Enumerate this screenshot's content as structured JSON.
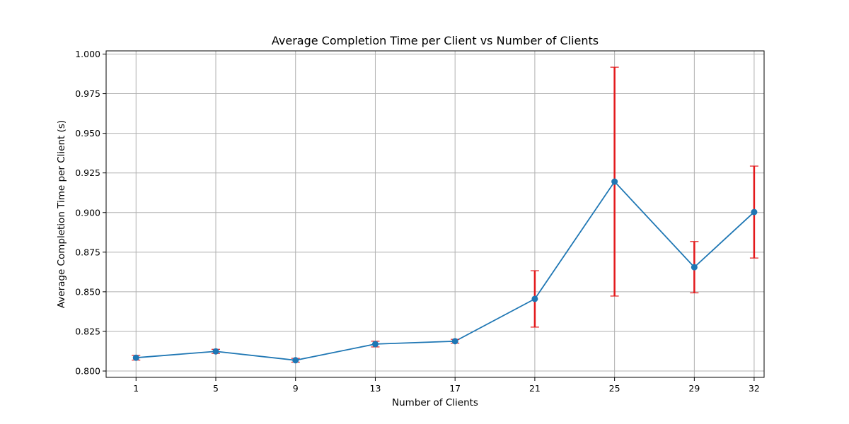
{
  "chart_data": {
    "type": "line",
    "title": "Average Completion Time per Client vs Number of Clients",
    "xlabel": "Number of Clients",
    "ylabel": "Average Completion Time per Client (s)",
    "x_ticks": [
      1,
      5,
      9,
      13,
      17,
      21,
      25,
      29,
      32
    ],
    "y_ticks": [
      "0.800",
      "0.825",
      "0.850",
      "0.875",
      "0.900",
      "0.925",
      "0.950",
      "0.975",
      "1.000"
    ],
    "xlim": [
      -0.5,
      32.5
    ],
    "ylim": [
      0.796,
      1.002
    ],
    "grid": true,
    "series": [
      {
        "x": [
          1,
          5,
          9,
          13,
          17,
          21,
          25,
          29,
          32
        ],
        "y": [
          0.8084,
          0.8124,
          0.8068,
          0.817,
          0.8188,
          0.8455,
          0.9195,
          0.8655,
          0.9003
        ],
        "y_err": [
          0.0015,
          0.0013,
          0.0012,
          0.0018,
          0.0012,
          0.0178,
          0.0722,
          0.0162,
          0.029
        ],
        "color": "#1f77b4",
        "error_color": "#e31a1c"
      }
    ]
  }
}
